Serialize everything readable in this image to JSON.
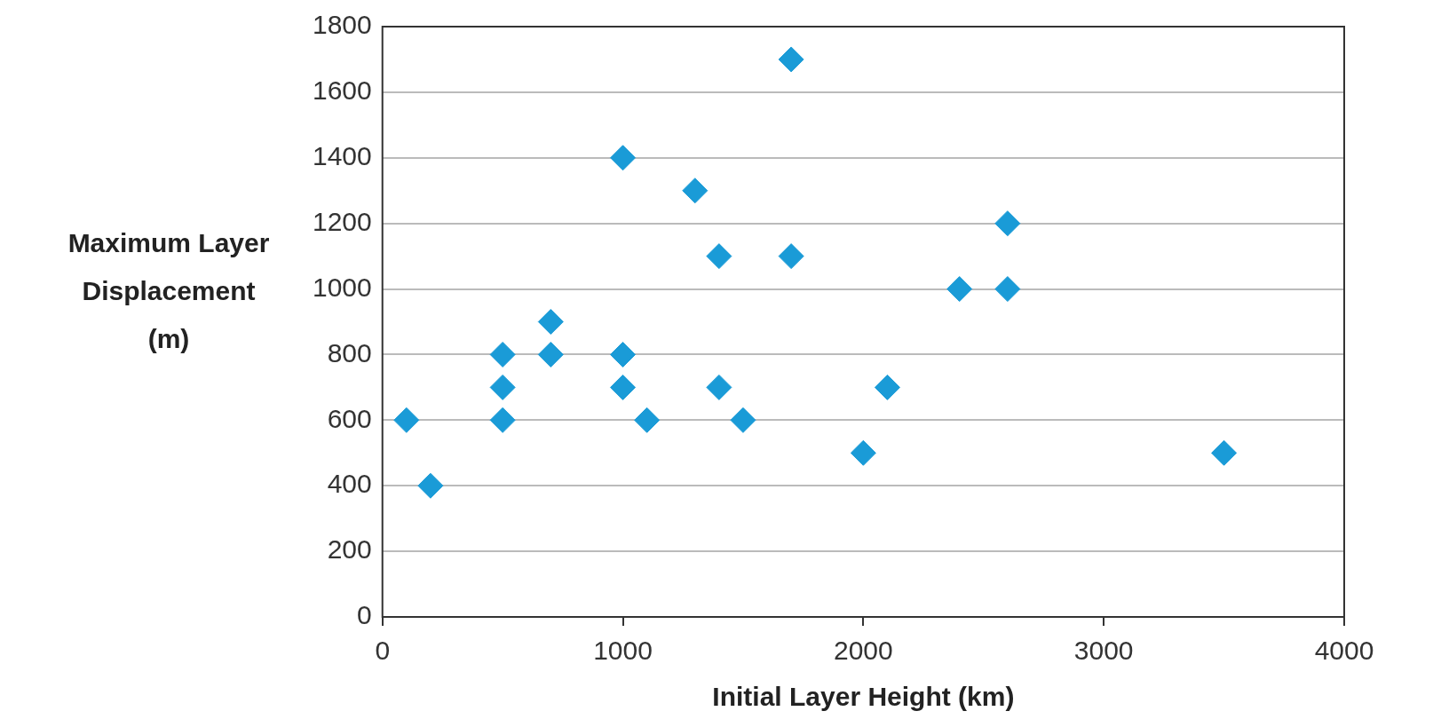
{
  "chart_data": {
    "type": "scatter",
    "xlabel": "Initial Layer Height (km)",
    "ylabel": "Maximum Layer Displacement (m)",
    "x": [
      100,
      200,
      500,
      500,
      500,
      700,
      700,
      1000,
      1000,
      1000,
      1100,
      1300,
      1400,
      1400,
      1500,
      1700,
      1700,
      2000,
      2100,
      2400,
      2600,
      2600,
      3500
    ],
    "values": [
      600,
      400,
      800,
      700,
      600,
      900,
      800,
      1400,
      800,
      700,
      600,
      1300,
      1100,
      700,
      600,
      1700,
      1100,
      500,
      700,
      1000,
      1200,
      1000,
      500
    ],
    "color": "#1a9bd7",
    "marker": "diamond",
    "xlim": [
      0,
      4000
    ],
    "xticks": [
      0,
      1000,
      2000,
      3000,
      4000
    ],
    "ylim": [
      0,
      1800
    ],
    "yticks": [
      0,
      200,
      400,
      600,
      800,
      1000,
      1200,
      1400,
      1600,
      1800
    ],
    "grid": "y",
    "legend": false
  }
}
